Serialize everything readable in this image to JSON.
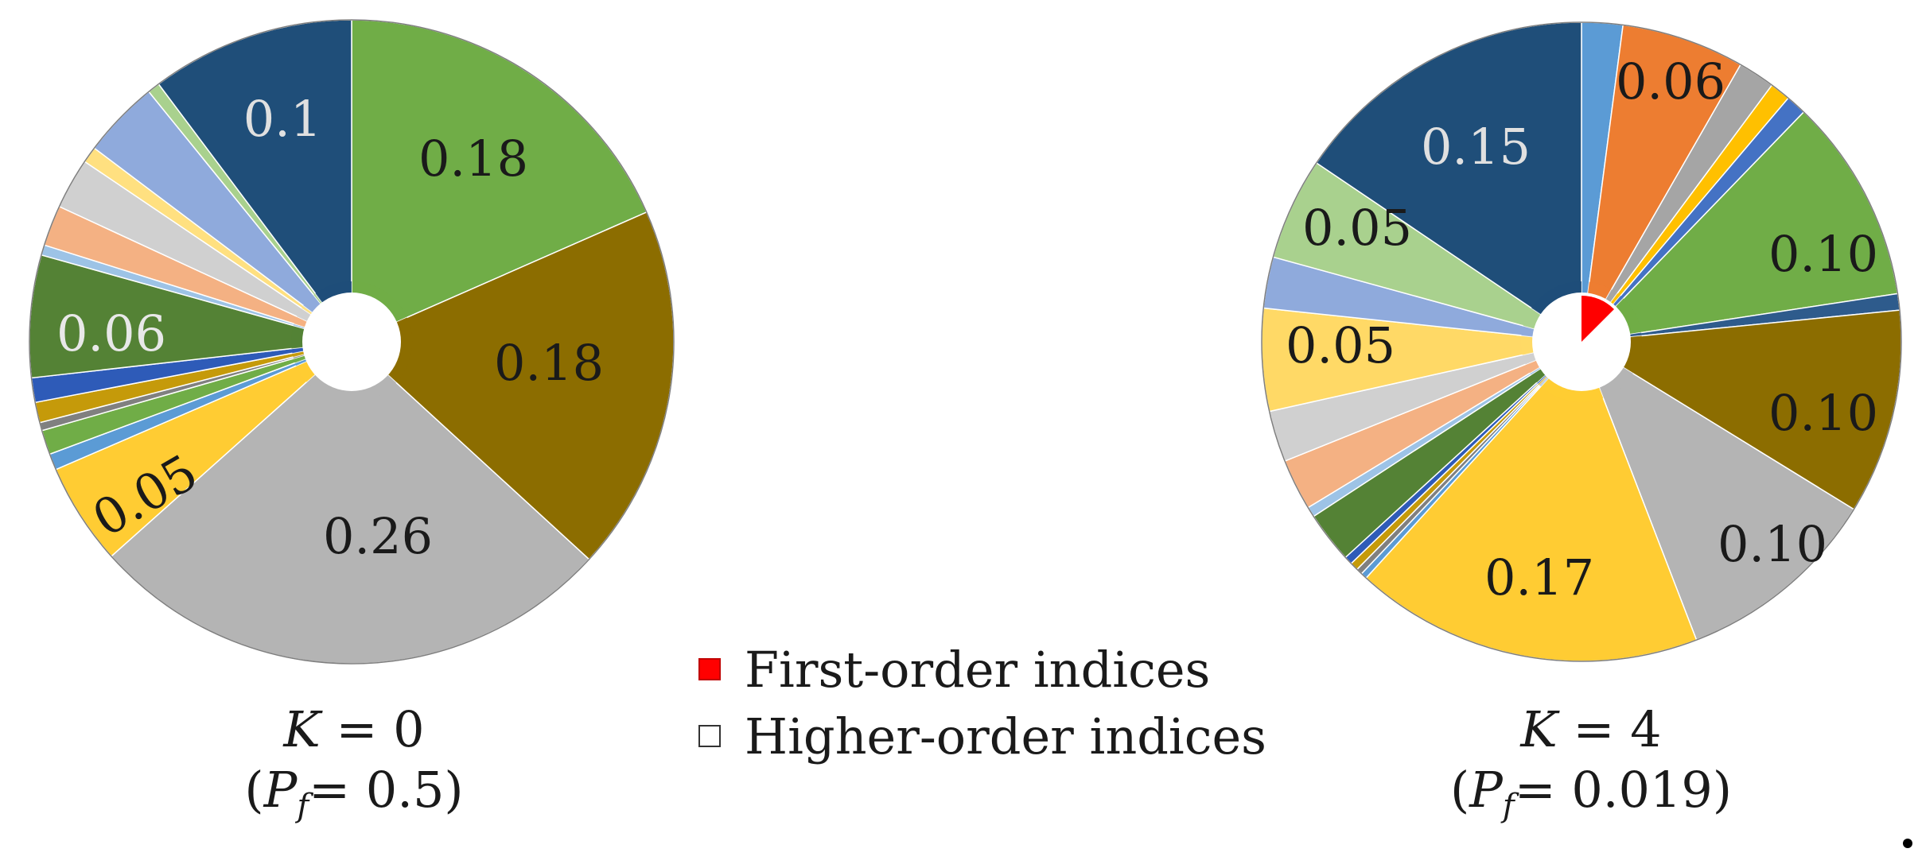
{
  "chart_data": [
    {
      "type": "pie",
      "style": "donut",
      "caption_line1": "K = 0",
      "caption_line2": "(Pf= 0.5)",
      "caption": {
        "var": "K",
        "eq": " = 0",
        "open": "(",
        "sym": "P",
        "sub": "f",
        "val": "= 0.5)"
      },
      "slices": [
        {
          "value": 0.18,
          "color": "#70ad47",
          "label": "0.18",
          "label_color": "#1a1a1a"
        },
        {
          "value": 0.18,
          "color": "#8c6d00",
          "label": "0.18",
          "label_color": "#1a1a1a"
        },
        {
          "value": 0.26,
          "color": "#b4b4b4",
          "label": "0.26",
          "label_color": "#1a1a1a"
        },
        {
          "value": 0.05,
          "color": "#ffcc33",
          "label": "0.05",
          "label_color": "#1a1a1a"
        },
        {
          "value": 0.008,
          "color": "#5b9bd5",
          "label": ""
        },
        {
          "value": 0.012,
          "color": "#70ad47",
          "label": ""
        },
        {
          "value": 0.004,
          "color": "#808080",
          "label": ""
        },
        {
          "value": 0.01,
          "color": "#c59a0a",
          "label": ""
        },
        {
          "value": 0.012,
          "color": "#2e5bb8",
          "label": ""
        },
        {
          "value": 0.06,
          "color": "#548235",
          "label": "0.06",
          "label_color": "#e8e8e8"
        },
        {
          "value": 0.005,
          "color": "#9dc3e6",
          "label": ""
        },
        {
          "value": 0.02,
          "color": "#f4b183",
          "label": ""
        },
        {
          "value": 0.025,
          "color": "#d0d0d0",
          "label": ""
        },
        {
          "value": 0.008,
          "color": "#ffe080",
          "label": ""
        },
        {
          "value": 0.038,
          "color": "#8faadc",
          "label": ""
        },
        {
          "value": 0.006,
          "color": "#a9d18e",
          "label": ""
        },
        {
          "value": 0.1,
          "color": "#1f4e79",
          "label": "0.1",
          "label_color": "#e0e0e0"
        }
      ],
      "first_order_wedge": 0
    },
    {
      "type": "pie",
      "style": "donut",
      "caption_line1": "K = 4",
      "caption_line2": "(Pf= 0.019)",
      "caption": {
        "var": "K",
        "eq": " = 4",
        "open": "(",
        "sym": "P",
        "sub": "f",
        "val": "= 0.019)"
      },
      "slices": [
        {
          "value": 0.02,
          "color": "#5b9bd5",
          "label": ""
        },
        {
          "value": 0.06,
          "color": "#ed7d31",
          "label": "0.06",
          "label_color": "#1a1a1a"
        },
        {
          "value": 0.018,
          "color": "#a5a5a5",
          "label": ""
        },
        {
          "value": 0.01,
          "color": "#ffc000",
          "label": ""
        },
        {
          "value": 0.01,
          "color": "#4472c4",
          "label": ""
        },
        {
          "value": 0.1,
          "color": "#70ad47",
          "label": "0.10",
          "label_color": "#1a1a1a"
        },
        {
          "value": 0.008,
          "color": "#2e5b8c",
          "label": ""
        },
        {
          "value": 0.1,
          "color": "#8c6d00",
          "label": "0.10",
          "label_color": "#1a1a1a"
        },
        {
          "value": 0.1,
          "color": "#b4b4b4",
          "label": "0.10",
          "label_color": "#1a1a1a"
        },
        {
          "value": 0.17,
          "color": "#ffcc33",
          "label": "0.17",
          "label_color": "#1a1a1a"
        },
        {
          "value": 0.003,
          "color": "#5b9bd5",
          "label": ""
        },
        {
          "value": 0.003,
          "color": "#808080",
          "label": ""
        },
        {
          "value": 0.004,
          "color": "#c59a0a",
          "label": ""
        },
        {
          "value": 0.004,
          "color": "#2e5bb8",
          "label": ""
        },
        {
          "value": 0.025,
          "color": "#548235",
          "label": ""
        },
        {
          "value": 0.005,
          "color": "#9dc3e6",
          "label": ""
        },
        {
          "value": 0.025,
          "color": "#f4b183",
          "label": ""
        },
        {
          "value": 0.025,
          "color": "#d0d0d0",
          "label": ""
        },
        {
          "value": 0.05,
          "color": "#ffd966",
          "label": "0.05",
          "label_color": "#1a1a1a"
        },
        {
          "value": 0.025,
          "color": "#8faadc",
          "label": ""
        },
        {
          "value": 0.05,
          "color": "#a9d18e",
          "label": "0.05",
          "label_color": "#1a1a1a"
        },
        {
          "value": 0.15,
          "color": "#1f4e79",
          "label": "0.15",
          "label_color": "#e0e0e0"
        }
      ],
      "first_order_wedge": 0.125
    }
  ],
  "legend": [
    {
      "label": "First-order indices",
      "color": "#ff0000",
      "filled": true
    },
    {
      "label": "Higher-order indices",
      "color": "#ffffff",
      "filled": false
    }
  ]
}
